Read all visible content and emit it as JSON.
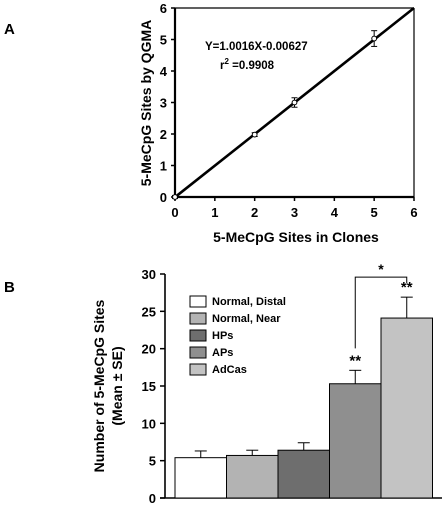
{
  "panels": {
    "a": {
      "letter": "A"
    },
    "b": {
      "letter": "B"
    }
  },
  "chart_data": [
    {
      "type": "scatter",
      "panel": "A",
      "xlabel": "5-MeCpG Sites in Clones",
      "ylabel": "5-MeCpG Sites by QGMA",
      "xlim": [
        0,
        6
      ],
      "ylim": [
        0,
        6
      ],
      "xticks": [
        "0",
        "1",
        "2",
        "3",
        "4",
        "5",
        "6"
      ],
      "yticks": [
        "0",
        "1",
        "2",
        "3",
        "4",
        "5",
        "6"
      ],
      "points": [
        {
          "x": 0,
          "y": 0.0,
          "err": 0.05
        },
        {
          "x": 2,
          "y": 1.98,
          "err": 0.06
        },
        {
          "x": 3,
          "y": 3.0,
          "err": 0.15
        },
        {
          "x": 5,
          "y": 5.03,
          "err": 0.25
        }
      ],
      "fit": {
        "slope": 1.0016,
        "intercept": -0.00627
      },
      "annotations": {
        "equation": "Y=1.0016X-0.00627",
        "r2_prefix": "r",
        "r2_sup": "2",
        "r2_value": " =0.9908"
      },
      "grid": false
    },
    {
      "type": "bar",
      "panel": "B",
      "ylabel_line1": "Number of 5-MeCpG Sites",
      "ylabel_line2": "(Mean ± SE)",
      "ylim": [
        0,
        30
      ],
      "yticks": [
        "0",
        "5",
        "10",
        "15",
        "20",
        "25",
        "30"
      ],
      "categories": [
        "Normal, Distal",
        "Normal, Near",
        "HPs",
        "APs",
        "AdCas"
      ],
      "values": [
        5.4,
        5.7,
        6.4,
        15.3,
        24.1
      ],
      "errors": [
        0.9,
        0.7,
        1.0,
        1.8,
        2.8
      ],
      "colors": [
        "#ffffff",
        "#b3b3b3",
        "#6e6e6e",
        "#8f8f8f",
        "#c3c3c3"
      ],
      "legend_placement": "top-left",
      "annotations": {
        "sig_aps": "**",
        "sig_adcas": "**",
        "bracket_label": "*"
      },
      "grid": false
    }
  ]
}
